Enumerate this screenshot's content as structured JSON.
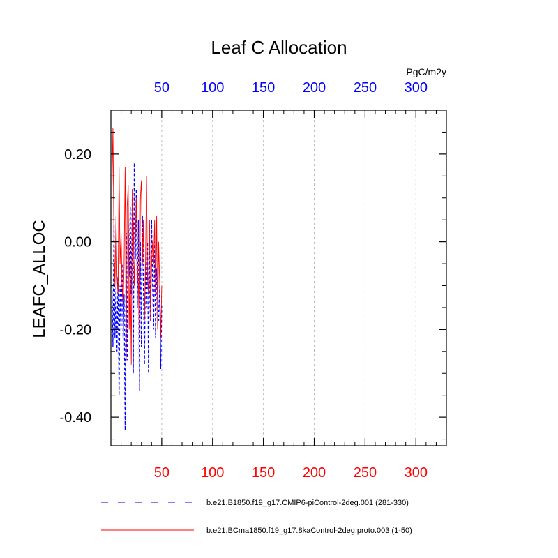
{
  "chart_data": {
    "type": "line",
    "title": "Leaf C Allocation",
    "ylabel": "LEAFC_ALLOC",
    "units_label": "PgC/m2y",
    "xlim": [
      0,
      330
    ],
    "ylim": [
      -0.465,
      0.3
    ],
    "xticks": [
      50,
      100,
      150,
      200,
      250,
      300
    ],
    "xtick_labels": [
      "50",
      "100",
      "150",
      "200",
      "250",
      "300"
    ],
    "yticks": [
      0.2,
      0.0,
      -0.2,
      -0.4
    ],
    "ytick_labels": [
      "0.20",
      "0.00",
      "-0.20",
      "-0.40"
    ],
    "grid": "vertical-dashed",
    "series": [
      {
        "name": "b.e21.B1850.f19_g17.CMIP6-piControl-2deg.001 (281-330)",
        "color": "#0000ff",
        "style": "dashed",
        "x": [
          1,
          2,
          3,
          4,
          5,
          6,
          7,
          8,
          9,
          10,
          11,
          12,
          13,
          14,
          15,
          16,
          17,
          18,
          19,
          20,
          21,
          22,
          23,
          24,
          25,
          26,
          27,
          28,
          29,
          30,
          31,
          32,
          33,
          34,
          35,
          36,
          37,
          38,
          39,
          40,
          41,
          42,
          43,
          44,
          45,
          46,
          47,
          48,
          49,
          50
        ],
        "y": [
          -0.1,
          -0.24,
          0.04,
          -0.22,
          -0.1,
          -0.25,
          -0.08,
          -0.35,
          -0.1,
          -0.2,
          -0.05,
          -0.22,
          -0.12,
          -0.43,
          0.02,
          -0.27,
          0.06,
          -0.08,
          0.08,
          -0.12,
          0.1,
          -0.3,
          0.18,
          -0.04,
          0.12,
          -0.15,
          0.05,
          -0.34,
          0.0,
          -0.24,
          0.06,
          -0.1,
          -0.28,
          -0.05,
          -0.15,
          0.0,
          -0.3,
          -0.02,
          -0.18,
          0.05,
          -0.1,
          -0.2,
          0.0,
          -0.22,
          -0.06,
          -0.12,
          -0.18,
          -0.1,
          -0.29,
          -0.14
        ]
      },
      {
        "name": "b.e21.BCma1850.f19_g17.8kaControl-2deg.proto.003 (1-50)",
        "color": "#ff0000",
        "style": "solid",
        "x": [
          1,
          2,
          3,
          4,
          5,
          6,
          7,
          8,
          9,
          10,
          11,
          12,
          13,
          14,
          15,
          16,
          17,
          18,
          19,
          20,
          21,
          22,
          23,
          24,
          25,
          26,
          27,
          28,
          29,
          30,
          31,
          32,
          33,
          34,
          35,
          36,
          37,
          38,
          39,
          40,
          41,
          42,
          43,
          44,
          45,
          46,
          47,
          48,
          49,
          50
        ],
        "y": [
          0.12,
          0.26,
          0.0,
          -0.1,
          0.06,
          -0.08,
          -0.12,
          0.17,
          -0.05,
          0.02,
          -0.1,
          -0.15,
          -0.05,
          0.17,
          -0.27,
          0.08,
          0.13,
          -0.2,
          -0.04,
          -0.28,
          0.12,
          0.04,
          -0.1,
          0.0,
          0.1,
          -0.05,
          -0.1,
          -0.22,
          0.1,
          0.14,
          -0.05,
          0.05,
          -0.18,
          -0.05,
          0.15,
          -0.08,
          -0.12,
          0.05,
          -0.18,
          -0.05,
          0.0,
          -0.05,
          0.05,
          -0.12,
          0.06,
          -0.2,
          0.0,
          -0.1,
          -0.22,
          -0.1
        ]
      }
    ]
  }
}
